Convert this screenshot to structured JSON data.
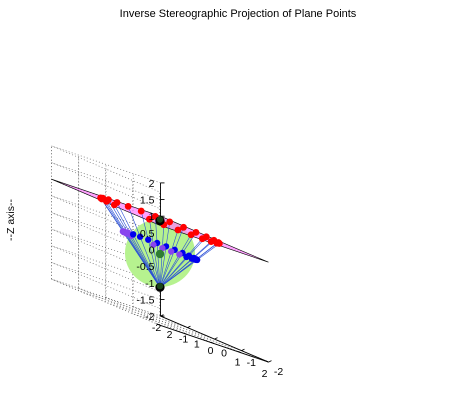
{
  "chart_data": {
    "type": "scatter3d",
    "title": "Inverse Stereographic Projection of Plane Points",
    "xlabel": "",
    "ylabel": "",
    "zlabel": "--Z axis--",
    "xlim": [
      -2,
      2
    ],
    "ylim": [
      -2,
      2
    ],
    "zlim": [
      -2,
      2
    ],
    "x_ticks": [
      "-2",
      "-1",
      "0",
      "1",
      "2"
    ],
    "y_ticks": [
      "-2",
      "-1",
      "0",
      "1",
      "2"
    ],
    "z_ticks": [
      "-2",
      "-1.5",
      "-1",
      "-0.5",
      "0",
      "0.5",
      "1",
      "1.5",
      "2"
    ],
    "grid": true,
    "plane": {
      "z": 1,
      "color": "#ff7fff"
    },
    "sphere": {
      "center": [
        0,
        0,
        0
      ],
      "radius": 1,
      "color": "#b6f28f"
    },
    "special_points": [
      {
        "role": "north-pole",
        "coords": [
          0,
          0,
          1
        ],
        "color": "#000000"
      },
      {
        "role": "south-pole",
        "coords": [
          0,
          0,
          -1
        ],
        "color": "#000000"
      },
      {
        "role": "center",
        "coords": [
          0,
          0,
          0
        ],
        "color": "#2e7d32"
      }
    ],
    "projection_pole": [
      0,
      0,
      -1
    ],
    "plane_circle": {
      "center": [
        0,
        0
      ],
      "radius": 1.55,
      "z": 1,
      "count": 24,
      "start_deg": 95,
      "sweep_deg": 320
    },
    "series": [
      {
        "role": "plane-points",
        "color": "#ff0000"
      },
      {
        "role": "sphere-points",
        "color": "#0000ee"
      },
      {
        "role": "sphere-points-hidden",
        "color": "#8844ee"
      },
      {
        "role": "projection-lines",
        "color": "#2a4fd6"
      }
    ]
  }
}
